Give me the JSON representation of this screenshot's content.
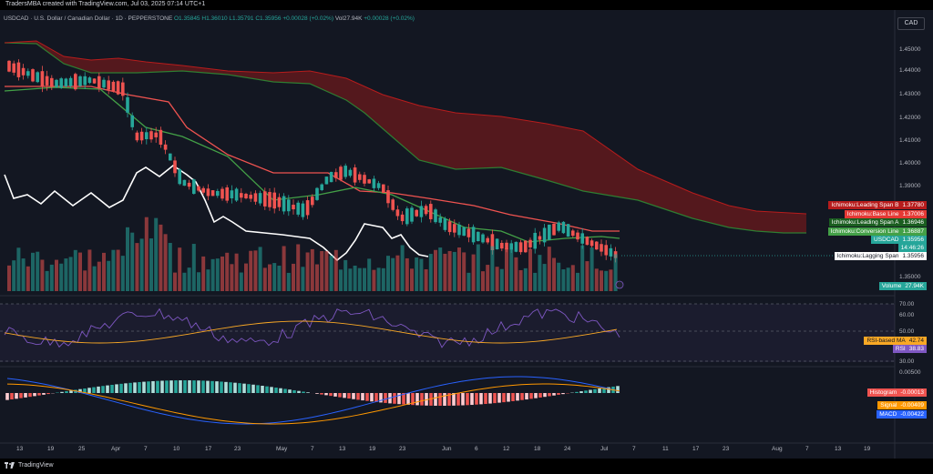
{
  "header": {
    "created_line": "TradersMBA created with TradingView.com, Jul 03, 2025 07:14 UTC+1",
    "symbol_desc": "USDCAD · U.S. Dollar / Canadian Dollar · 1D · PEPPERSTONE",
    "ohlc": {
      "o": "O1.35845",
      "h": "H1.36010",
      "l": "L1.35791",
      "c": "C1.35956",
      "chg": "+0.00028 (+0.02%)"
    },
    "vol": "Vol27.94K",
    "vol_chg": "+0.00028 (+0.02%)",
    "currency_button": "CAD"
  },
  "price_axis": [
    "1.45000",
    "1.44000",
    "1.43000",
    "1.42000",
    "1.41000",
    "1.40000",
    "1.39000",
    "1.35000"
  ],
  "price_labels": {
    "span_b": {
      "name": "Ichimoku:Leading Span B",
      "value": "1.37780",
      "color": "#e53935"
    },
    "base_line": {
      "name": "Ichimoku:Base Line",
      "value": "1.37006",
      "color": "#ef5350"
    },
    "span_a": {
      "name": "Ichimoku:Leading Span A",
      "value": "1.36946",
      "color": "#1b5e20"
    },
    "conversion": {
      "name": "Ichimoku:Conversion Line",
      "value": "1.36887",
      "color": "#43a047"
    },
    "usdcad": {
      "name": "USDCAD",
      "value": "1.35956",
      "countdown": "14:46:26",
      "color": "#26a69a"
    },
    "lagging": {
      "name": "Ichimoku:Lagging Span",
      "value": "1.35956",
      "color": "#ffffff"
    },
    "volume": {
      "name": "Volume",
      "value": "27.94K",
      "color": "#26a69a"
    }
  },
  "rsi": {
    "axis": [
      "70.00",
      "60.00",
      "50.00",
      "30.00"
    ],
    "ma_label": {
      "name": "RSI-based MA",
      "value": "42.74",
      "color": "#f9a825"
    },
    "rsi_label": {
      "name": "RSI",
      "value": "38.83",
      "color": "#7e57c2"
    }
  },
  "macd": {
    "axis": [
      "0.00500"
    ],
    "histogram": {
      "name": "Histogram",
      "value": "-0.00013",
      "color": "#ef5350"
    },
    "signal": {
      "name": "Signal",
      "value": "-0.00409",
      "color": "#ff9800"
    },
    "macd": {
      "name": "MACD",
      "value": "-0.00422",
      "color": "#2962ff"
    }
  },
  "time_axis": [
    "13",
    "19",
    "25",
    "Apr",
    "7",
    "10",
    "17",
    "23",
    "May",
    "7",
    "13",
    "19",
    "23",
    "Jun",
    "6",
    "12",
    "18",
    "24",
    "Jul",
    "7",
    "11",
    "17",
    "23",
    "Aug",
    "7",
    "13",
    "19"
  ],
  "footer": {
    "brand": "TradingView"
  }
}
